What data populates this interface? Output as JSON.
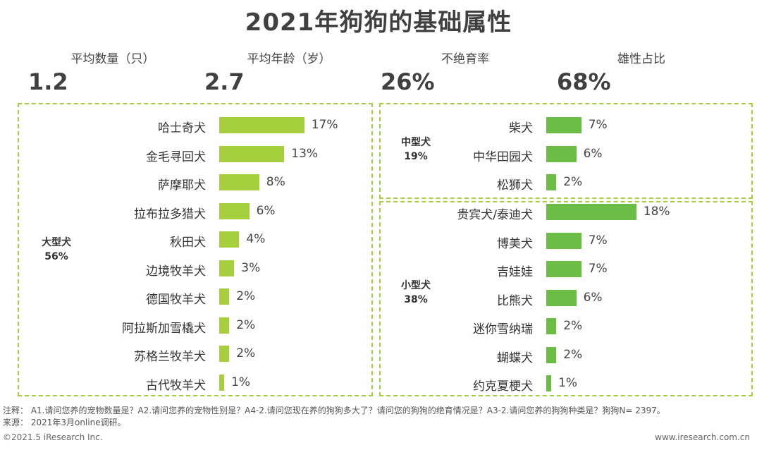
{
  "title": "2021年狗狗的基础属性",
  "stats": [
    {
      "label": "平均数量（只）",
      "value": "1.2"
    },
    {
      "label": "平均年龄（岁）",
      "value": "2.7"
    },
    {
      "label": "不绝育率",
      "value": "26%"
    },
    {
      "label": "雄性占比",
      "value": "68%"
    }
  ],
  "colors": {
    "large": "#a5cf3c",
    "medium_small": "#6cbd45",
    "border": "#a5cf3c"
  },
  "chart_data": [
    {
      "type": "bar",
      "orientation": "horizontal",
      "group_label": "大型犬",
      "group_share": "56%",
      "categories": [
        "哈士奇犬",
        "金毛寻回犬",
        "萨摩耶犬",
        "拉布拉多猎犬",
        "秋田犬",
        "边境牧羊犬",
        "德国牧羊犬",
        "阿拉斯加雪橇犬",
        "苏格兰牧羊犬",
        "古代牧羊犬"
      ],
      "values": [
        17,
        13,
        8,
        6,
        4,
        3,
        2,
        2,
        2,
        1
      ],
      "value_labels": [
        "17%",
        "13%",
        "8%",
        "6%",
        "4%",
        "3%",
        "2%",
        "2%",
        "2%",
        "1%"
      ]
    },
    {
      "type": "bar",
      "orientation": "horizontal",
      "group_label": "中型犬",
      "group_share": "19%",
      "categories": [
        "柴犬",
        "中华田园犬",
        "松狮犬"
      ],
      "values": [
        7,
        6,
        2
      ],
      "value_labels": [
        "7%",
        "6%",
        "2%"
      ]
    },
    {
      "type": "bar",
      "orientation": "horizontal",
      "group_label": "小型犬",
      "group_share": "38%",
      "categories": [
        "贵宾犬/泰迪犬",
        "博美犬",
        "吉娃娃",
        "比熊犬",
        "迷你雪纳瑞",
        "蝴蝶犬",
        "约克夏梗犬"
      ],
      "values": [
        18,
        7,
        7,
        6,
        2,
        2,
        1
      ],
      "value_labels": [
        "18%",
        "7%",
        "7%",
        "6%",
        "2%",
        "2%",
        "1%"
      ]
    }
  ],
  "notes": {
    "line1": "注释：  A1.请问您养的宠物数量是？A2.请问您养的宠物性别是？A4-2.请问您现在养的狗狗多大了？请问您的狗狗的绝育情况是？A3-2.请问您养的狗狗种类是？狗狗N= 2397。",
    "line2": "来源：  2021年3月online调研。"
  },
  "footer": {
    "left": "©2021.5 iResearch Inc.",
    "right": "www.iresearch.com.cn"
  }
}
